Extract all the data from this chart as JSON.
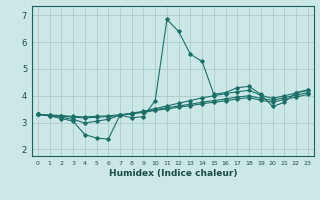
{
  "title": "",
  "xlabel": "Humidex (Indice chaleur)",
  "ylabel": "",
  "xlim": [
    -0.5,
    23.5
  ],
  "ylim": [
    1.75,
    7.35
  ],
  "yticks": [
    2,
    3,
    4,
    5,
    6,
    7
  ],
  "background_color": "#cce8e6",
  "grid_color": "#aaccca",
  "line_color": "#1a7068",
  "lines": [
    [
      3.3,
      3.25,
      3.15,
      3.05,
      2.55,
      2.42,
      2.38,
      3.28,
      3.18,
      3.22,
      3.82,
      6.85,
      6.4,
      5.55,
      5.28,
      4.05,
      4.12,
      4.3,
      4.35,
      4.05,
      3.6,
      3.75,
      4.12,
      4.22
    ],
    [
      3.3,
      3.25,
      3.2,
      3.12,
      2.98,
      3.05,
      3.12,
      3.28,
      3.35,
      3.42,
      3.52,
      3.62,
      3.72,
      3.82,
      3.92,
      4.0,
      4.08,
      4.15,
      4.2,
      4.02,
      3.9,
      4.0,
      4.1,
      4.2
    ],
    [
      3.3,
      3.27,
      3.24,
      3.2,
      3.17,
      3.2,
      3.22,
      3.27,
      3.33,
      3.4,
      3.48,
      3.55,
      3.62,
      3.68,
      3.76,
      3.82,
      3.88,
      3.95,
      4.0,
      3.9,
      3.83,
      3.93,
      4.02,
      4.12
    ],
    [
      3.3,
      3.28,
      3.26,
      3.23,
      3.21,
      3.23,
      3.25,
      3.29,
      3.33,
      3.38,
      3.45,
      3.51,
      3.57,
      3.63,
      3.7,
      3.76,
      3.81,
      3.88,
      3.93,
      3.83,
      3.76,
      3.86,
      3.95,
      4.05
    ]
  ]
}
